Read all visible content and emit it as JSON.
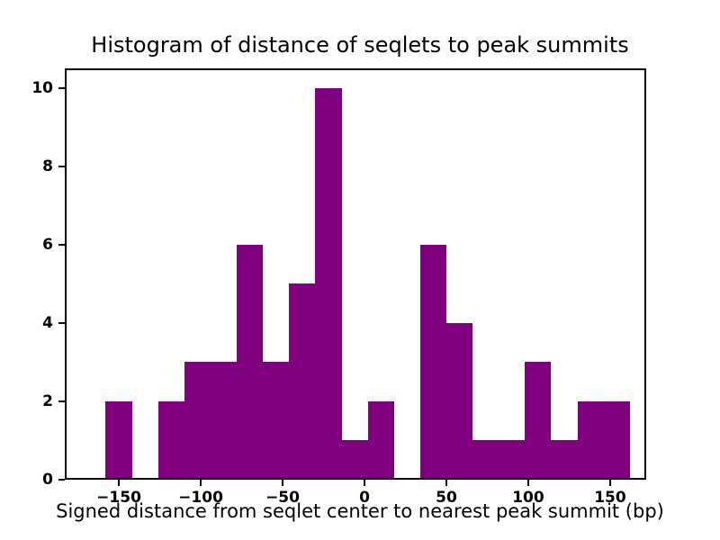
{
  "chart_data": {
    "type": "bar",
    "subtype": "histogram",
    "title": "Histogram of distance of seqlets to peak summits",
    "xlabel": "Signed distance from seqlet center to nearest peak summit (bp)",
    "ylabel": "",
    "bar_color": "#800080",
    "axis_color": "#000000",
    "background_color": "#ffffff",
    "grid": false,
    "legend": false,
    "xlim": [
      -183,
      172
    ],
    "ylim": [
      0,
      10.5
    ],
    "x_ticks": [
      {
        "value": -150,
        "label": "−150"
      },
      {
        "value": -100,
        "label": "−100"
      },
      {
        "value": -50,
        "label": "−50"
      },
      {
        "value": 0,
        "label": "0"
      },
      {
        "value": 50,
        "label": "50"
      },
      {
        "value": 100,
        "label": "100"
      },
      {
        "value": 150,
        "label": "150"
      }
    ],
    "y_ticks": [
      {
        "value": 0,
        "label": "0"
      },
      {
        "value": 2,
        "label": "2"
      },
      {
        "value": 4,
        "label": "4"
      },
      {
        "value": 6,
        "label": "6"
      },
      {
        "value": 8,
        "label": "8"
      },
      {
        "value": 10,
        "label": "10"
      }
    ],
    "bins": [
      {
        "start": -158,
        "end": -142,
        "count": 2
      },
      {
        "start": -142,
        "end": -126,
        "count": 0
      },
      {
        "start": -126,
        "end": -110,
        "count": 2
      },
      {
        "start": -110,
        "end": -94,
        "count": 3
      },
      {
        "start": -94,
        "end": -78,
        "count": 3
      },
      {
        "start": -78,
        "end": -62,
        "count": 6
      },
      {
        "start": -62,
        "end": -46,
        "count": 3
      },
      {
        "start": -46,
        "end": -30,
        "count": 5
      },
      {
        "start": -30,
        "end": -14,
        "count": 10
      },
      {
        "start": -14,
        "end": 2,
        "count": 1
      },
      {
        "start": 2,
        "end": 18,
        "count": 2
      },
      {
        "start": 18,
        "end": 34,
        "count": 0
      },
      {
        "start": 34,
        "end": 50,
        "count": 6
      },
      {
        "start": 50,
        "end": 66,
        "count": 4
      },
      {
        "start": 66,
        "end": 82,
        "count": 1
      },
      {
        "start": 82,
        "end": 98,
        "count": 1
      },
      {
        "start": 98,
        "end": 114,
        "count": 3
      },
      {
        "start": 114,
        "end": 130,
        "count": 1
      },
      {
        "start": 130,
        "end": 146,
        "count": 2
      },
      {
        "start": 146,
        "end": 162,
        "count": 2
      }
    ]
  }
}
